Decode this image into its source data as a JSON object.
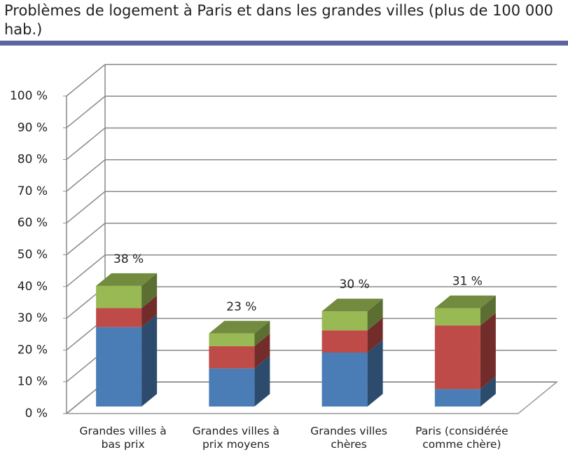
{
  "chart_data": {
    "type": "bar3d-stacked",
    "title": "Problèmes de logement à Paris et dans les grandes villes (plus de 100 000 hab.)",
    "categories": [
      "Grandes villes à bas prix",
      "Grandes villes à prix moyens",
      "Grandes villes chères",
      "Paris (considérée comme chère)"
    ],
    "series": [
      {
        "color": "#4a7db5",
        "values": [
          25,
          12,
          17,
          5.5
        ]
      },
      {
        "color": "#be4b48",
        "values": [
          6,
          7,
          7,
          20
        ]
      },
      {
        "color": "#98b954",
        "values": [
          7,
          4,
          6,
          5.5
        ]
      }
    ],
    "totals": [
      38,
      23,
      30,
      31
    ],
    "total_labels": [
      "38 %",
      "23 %",
      "30 %",
      "31 %"
    ],
    "ylim": [
      0,
      100
    ],
    "yticks": [
      {
        "value": 0,
        "label": "0 %"
      },
      {
        "value": 10,
        "label": "10 %"
      },
      {
        "value": 20,
        "label": "20 %"
      },
      {
        "value": 30,
        "label": "30 %"
      },
      {
        "value": 40,
        "label": "40 %"
      },
      {
        "value": 50,
        "label": "50 %"
      },
      {
        "value": 60,
        "label": "60 %"
      },
      {
        "value": 70,
        "label": "70 %"
      },
      {
        "value": 80,
        "label": "80 %"
      },
      {
        "value": 90,
        "label": "90 %"
      },
      {
        "value": 100,
        "label": "100 %"
      }
    ],
    "grid": true
  }
}
